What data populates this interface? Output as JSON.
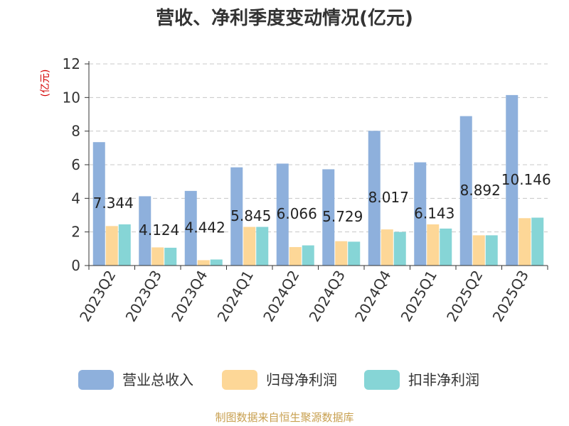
{
  "chart_data": {
    "type": "bar",
    "title": "营收、净利季度变动情况(亿元)",
    "ylabel": "(亿元)",
    "ylim": [
      0,
      12
    ],
    "yticks": [
      0,
      2,
      4,
      6,
      8,
      10,
      12
    ],
    "categories": [
      "2023Q2",
      "2023Q3",
      "2023Q4",
      "2024Q1",
      "2024Q2",
      "2024Q3",
      "2024Q4",
      "2025Q1",
      "2025Q2",
      "2025Q3"
    ],
    "series": [
      {
        "name": "营业总收入",
        "color": "#8eb0dc",
        "values": [
          7.344,
          4.124,
          4.442,
          5.845,
          6.066,
          5.729,
          8.017,
          6.143,
          8.892,
          10.146
        ]
      },
      {
        "name": "归母净利润",
        "color": "#fdd797",
        "values": [
          2.35,
          1.08,
          0.32,
          2.3,
          1.1,
          1.45,
          2.15,
          2.45,
          1.8,
          2.82
        ]
      },
      {
        "name": "扣非净利润",
        "color": "#86d5d6",
        "values": [
          2.45,
          1.06,
          0.36,
          2.3,
          1.2,
          1.42,
          2.0,
          2.2,
          1.8,
          2.85
        ]
      }
    ],
    "data_labels": [
      "7.344",
      "4.124",
      "4.442",
      "5.845",
      "6.066",
      "5.729",
      "8.017",
      "6.143",
      "8.892",
      "10.146"
    ],
    "grid": true,
    "legend_position": "bottom"
  },
  "source_text": "制图数据来自恒生聚源数据库"
}
